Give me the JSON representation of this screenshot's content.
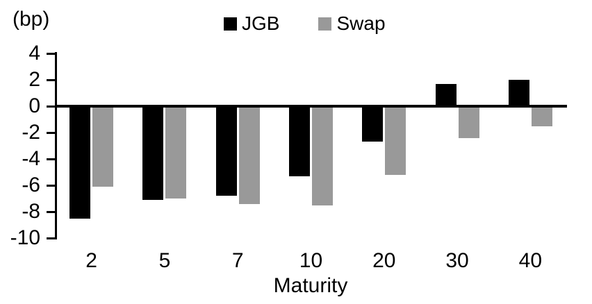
{
  "chart_data": {
    "type": "bar",
    "title": "",
    "unit_label": "(bp)",
    "xlabel": "Maturity",
    "ylabel": "(bp)",
    "categories": [
      "2",
      "5",
      "7",
      "10",
      "20",
      "30",
      "40"
    ],
    "series": [
      {
        "name": "JGB",
        "color": "#000000",
        "values": [
          -8.5,
          -7.1,
          -6.8,
          -5.3,
          -2.7,
          1.7,
          2.0
        ]
      },
      {
        "name": "Swap",
        "color": "#999999",
        "values": [
          -6.1,
          -7.0,
          -7.4,
          -7.5,
          -5.2,
          -2.4,
          -1.5
        ]
      }
    ],
    "y_ticks": [
      4,
      2,
      0,
      -2,
      -4,
      -6,
      -8,
      -10
    ],
    "ylim": [
      -10,
      4
    ],
    "grid": false,
    "legend_position": "top-center",
    "background": "#ffffff",
    "colors": {
      "jgb": "#000000",
      "swap": "#999999",
      "axis": "#000000"
    }
  }
}
